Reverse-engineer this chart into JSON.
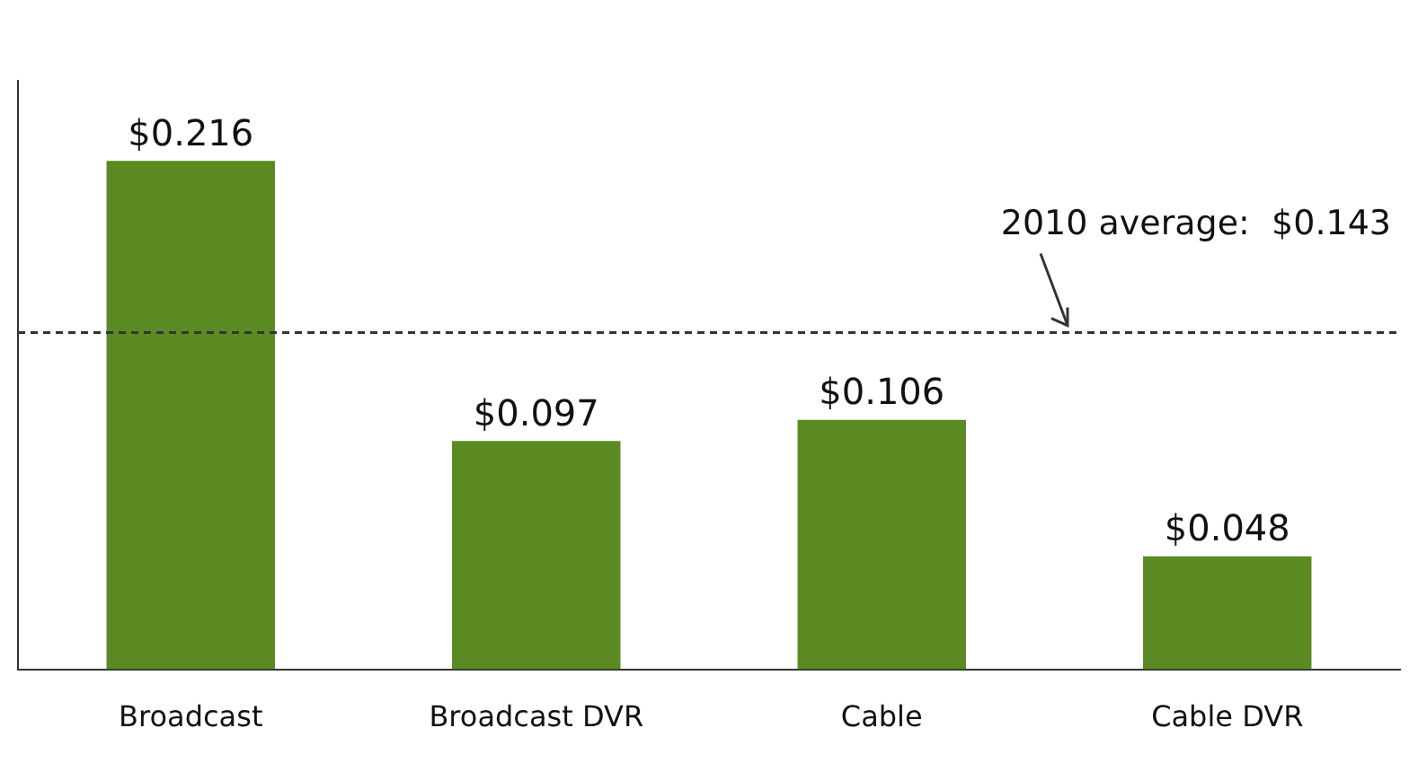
{
  "chart_data": {
    "type": "bar",
    "categories": [
      "Broadcast",
      "Broadcast DVR",
      "Cable",
      "Cable DVR"
    ],
    "values": [
      0.216,
      0.097,
      0.106,
      0.048
    ],
    "color": "#5b8a22",
    "data_labels": true,
    "value_labels": [
      "$0.216",
      "$0.097",
      "$0.106",
      "$0.048"
    ],
    "ref_lines": [
      {
        "axis": "y",
        "value": 0.143,
        "label": "2010 average:  $0.143",
        "line_style": "dashed",
        "color": "#333333"
      }
    ],
    "tick_labels": "x",
    "grid": false,
    "legend": false
  }
}
